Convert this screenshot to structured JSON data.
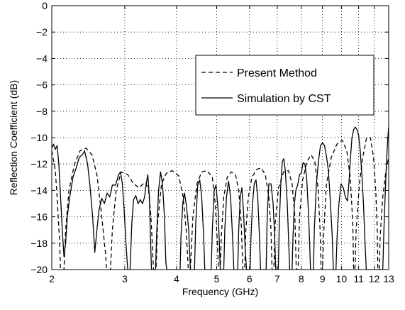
{
  "chart_data": {
    "type": "line",
    "title": "",
    "xlabel": "Frequency (GHz)",
    "ylabel": "Reflection Coefficient (dB)",
    "x_scale": "log",
    "xlim": [
      2,
      13
    ],
    "ylim": [
      -20,
      0
    ],
    "grid": true,
    "grid_style": "dotted",
    "legend_position": "upper-right",
    "x_ticks": [
      2,
      3,
      4,
      5,
      6,
      7,
      8,
      9,
      10,
      11,
      12,
      13
    ],
    "x_tick_labels": [
      "2",
      "3",
      "4",
      "5",
      "6",
      "7",
      "8",
      "9",
      "10",
      "11",
      "12",
      "13"
    ],
    "y_ticks": [
      0,
      -2,
      -4,
      -6,
      -8,
      -10,
      -12,
      -14,
      -16,
      -18,
      -20
    ],
    "y_tick_labels": [
      "0",
      "−2",
      "−4",
      "−6",
      "−8",
      "−10",
      "−12",
      "−14",
      "−16",
      "−18",
      "−20"
    ],
    "series": [
      {
        "name": "Present Method",
        "color": "#000000",
        "dashed": true,
        "points": [
          [
            2.0,
            -11.0
          ],
          [
            2.04,
            -12.5
          ],
          [
            2.06,
            -14.5
          ],
          [
            2.09,
            -18.0
          ],
          [
            2.1,
            -20
          ],
          [
            2.14,
            -20
          ],
          [
            2.16,
            -17.0
          ],
          [
            2.2,
            -14.0
          ],
          [
            2.27,
            -12.0
          ],
          [
            2.34,
            -11.0
          ],
          [
            2.42,
            -10.8
          ],
          [
            2.5,
            -11.3
          ],
          [
            2.57,
            -12.8
          ],
          [
            2.63,
            -15.5
          ],
          [
            2.7,
            -19.0
          ],
          [
            2.71,
            -20
          ],
          [
            2.77,
            -20
          ],
          [
            2.8,
            -17.0
          ],
          [
            2.86,
            -14.0
          ],
          [
            2.94,
            -12.6
          ],
          [
            3.05,
            -12.8
          ],
          [
            3.15,
            -13.5
          ],
          [
            3.25,
            -13.8
          ],
          [
            3.35,
            -13.4
          ],
          [
            3.42,
            -13.8
          ],
          [
            3.47,
            -16.0
          ],
          [
            3.52,
            -20
          ],
          [
            3.57,
            -20
          ],
          [
            3.6,
            -16.5
          ],
          [
            3.68,
            -13.5
          ],
          [
            3.78,
            -12.7
          ],
          [
            3.9,
            -12.5
          ],
          [
            4.05,
            -12.9
          ],
          [
            4.15,
            -14.5
          ],
          [
            4.22,
            -17.0
          ],
          [
            4.27,
            -20
          ],
          [
            4.32,
            -20
          ],
          [
            4.38,
            -16.0
          ],
          [
            4.48,
            -13.5
          ],
          [
            4.6,
            -12.6
          ],
          [
            4.74,
            -12.5
          ],
          [
            4.88,
            -13.0
          ],
          [
            4.96,
            -15.0
          ],
          [
            5.02,
            -18.0
          ],
          [
            5.05,
            -20
          ],
          [
            5.1,
            -20
          ],
          [
            5.13,
            -17.5
          ],
          [
            5.2,
            -14.5
          ],
          [
            5.3,
            -13.0
          ],
          [
            5.42,
            -12.6
          ],
          [
            5.55,
            -12.8
          ],
          [
            5.65,
            -14.0
          ],
          [
            5.73,
            -16.5
          ],
          [
            5.78,
            -20
          ],
          [
            5.84,
            -20
          ],
          [
            5.88,
            -17.0
          ],
          [
            5.96,
            -14.5
          ],
          [
            6.08,
            -13.0
          ],
          [
            6.25,
            -12.4
          ],
          [
            6.4,
            -12.3
          ],
          [
            6.55,
            -12.8
          ],
          [
            6.68,
            -14.5
          ],
          [
            6.76,
            -17.0
          ],
          [
            6.8,
            -20
          ],
          [
            6.87,
            -20
          ],
          [
            6.92,
            -16.5
          ],
          [
            7.05,
            -13.8
          ],
          [
            7.25,
            -12.6
          ],
          [
            7.45,
            -12.5
          ],
          [
            7.6,
            -13.5
          ],
          [
            7.72,
            -16.0
          ],
          [
            7.78,
            -20
          ],
          [
            7.86,
            -20
          ],
          [
            7.92,
            -16.0
          ],
          [
            8.06,
            -13.2
          ],
          [
            8.26,
            -11.8
          ],
          [
            8.45,
            -11.3
          ],
          [
            8.62,
            -11.8
          ],
          [
            8.78,
            -13.8
          ],
          [
            8.88,
            -17.0
          ],
          [
            8.93,
            -20
          ],
          [
            9.0,
            -20
          ],
          [
            9.07,
            -17.0
          ],
          [
            9.2,
            -13.5
          ],
          [
            9.45,
            -11.5
          ],
          [
            9.75,
            -10.5
          ],
          [
            10.05,
            -10.2
          ],
          [
            10.3,
            -11.0
          ],
          [
            10.5,
            -13.0
          ],
          [
            10.65,
            -16.5
          ],
          [
            10.7,
            -20
          ],
          [
            10.78,
            -20
          ],
          [
            10.85,
            -17.0
          ],
          [
            11.05,
            -13.5
          ],
          [
            11.25,
            -11.5
          ],
          [
            11.5,
            -10.0
          ],
          [
            11.75,
            -10.0
          ],
          [
            11.95,
            -11.5
          ],
          [
            12.1,
            -14.0
          ],
          [
            12.2,
            -17.0
          ],
          [
            12.24,
            -20
          ],
          [
            12.33,
            -20
          ],
          [
            12.4,
            -17.5
          ],
          [
            12.58,
            -14.5
          ],
          [
            12.8,
            -12.5
          ],
          [
            13.0,
            -11.5
          ]
        ]
      },
      {
        "name": "Simulation by CST",
        "color": "#000000",
        "dashed": false,
        "points": [
          [
            2.0,
            -10.8
          ],
          [
            2.02,
            -10.5
          ],
          [
            2.04,
            -10.9
          ],
          [
            2.06,
            -10.6
          ],
          [
            2.08,
            -12.0
          ],
          [
            2.1,
            -14.5
          ],
          [
            2.12,
            -17.0
          ],
          [
            2.14,
            -19.0
          ],
          [
            2.16,
            -18.0
          ],
          [
            2.18,
            -16.0
          ],
          [
            2.21,
            -14.5
          ],
          [
            2.25,
            -13.0
          ],
          [
            2.29,
            -12.3
          ],
          [
            2.33,
            -11.5
          ],
          [
            2.37,
            -11.3
          ],
          [
            2.4,
            -11.0
          ],
          [
            2.44,
            -12.0
          ],
          [
            2.47,
            -13.5
          ],
          [
            2.51,
            -16.0
          ],
          [
            2.54,
            -18.7
          ],
          [
            2.57,
            -17.0
          ],
          [
            2.6,
            -15.5
          ],
          [
            2.64,
            -14.6
          ],
          [
            2.68,
            -15.0
          ],
          [
            2.72,
            -14.2
          ],
          [
            2.76,
            -14.5
          ],
          [
            2.8,
            -13.6
          ],
          [
            2.85,
            -13.6
          ],
          [
            2.9,
            -12.8
          ],
          [
            2.93,
            -12.6
          ],
          [
            2.96,
            -13.5
          ],
          [
            2.99,
            -15.5
          ],
          [
            3.02,
            -18.0
          ],
          [
            3.05,
            -20
          ],
          [
            3.09,
            -20
          ],
          [
            3.12,
            -16.5
          ],
          [
            3.15,
            -14.7
          ],
          [
            3.19,
            -14.4
          ],
          [
            3.23,
            -15.0
          ],
          [
            3.27,
            -14.7
          ],
          [
            3.31,
            -15.0
          ],
          [
            3.35,
            -14.5
          ],
          [
            3.38,
            -13.5
          ],
          [
            3.41,
            -12.8
          ],
          [
            3.44,
            -14.5
          ],
          [
            3.46,
            -17.5
          ],
          [
            3.48,
            -20
          ],
          [
            3.56,
            -20
          ],
          [
            3.58,
            -17.5
          ],
          [
            3.62,
            -14.0
          ],
          [
            3.66,
            -12.6
          ],
          [
            3.7,
            -13.5
          ],
          [
            3.74,
            -16.0
          ],
          [
            3.77,
            -19.5
          ],
          [
            3.79,
            -20
          ],
          [
            4.08,
            -20
          ],
          [
            4.1,
            -17.5
          ],
          [
            4.14,
            -15.0
          ],
          [
            4.18,
            -14.2
          ],
          [
            4.22,
            -15.0
          ],
          [
            4.28,
            -17.0
          ],
          [
            4.32,
            -20
          ],
          [
            4.42,
            -20
          ],
          [
            4.45,
            -16.5
          ],
          [
            4.5,
            -13.6
          ],
          [
            4.55,
            -13.2
          ],
          [
            4.6,
            -14.5
          ],
          [
            4.65,
            -17.5
          ],
          [
            4.68,
            -20
          ],
          [
            4.85,
            -20
          ],
          [
            4.88,
            -17.0
          ],
          [
            4.93,
            -14.0
          ],
          [
            4.98,
            -13.6
          ],
          [
            5.04,
            -15.5
          ],
          [
            5.08,
            -18.5
          ],
          [
            5.1,
            -20
          ],
          [
            5.2,
            -20
          ],
          [
            5.23,
            -17.0
          ],
          [
            5.28,
            -14.5
          ],
          [
            5.34,
            -13.3
          ],
          [
            5.4,
            -14.5
          ],
          [
            5.46,
            -17.5
          ],
          [
            5.5,
            -20
          ],
          [
            5.62,
            -20
          ],
          [
            5.65,
            -17.0
          ],
          [
            5.7,
            -14.5
          ],
          [
            5.75,
            -13.8
          ],
          [
            5.8,
            -15.5
          ],
          [
            5.86,
            -18.5
          ],
          [
            5.9,
            -20
          ],
          [
            6.02,
            -20
          ],
          [
            6.05,
            -17.5
          ],
          [
            6.1,
            -15.0
          ],
          [
            6.16,
            -13.5
          ],
          [
            6.22,
            -13.2
          ],
          [
            6.28,
            -14.5
          ],
          [
            6.34,
            -17.5
          ],
          [
            6.38,
            -20
          ],
          [
            6.58,
            -20
          ],
          [
            6.62,
            -16.0
          ],
          [
            6.68,
            -13.5
          ],
          [
            6.76,
            -13.5
          ],
          [
            6.84,
            -15.0
          ],
          [
            6.9,
            -17.5
          ],
          [
            6.94,
            -20
          ],
          [
            7.04,
            -20
          ],
          [
            7.08,
            -16.5
          ],
          [
            7.14,
            -13.5
          ],
          [
            7.2,
            -11.8
          ],
          [
            7.26,
            -11.6
          ],
          [
            7.32,
            -12.5
          ],
          [
            7.4,
            -15.0
          ],
          [
            7.46,
            -18.0
          ],
          [
            7.5,
            -20
          ],
          [
            7.6,
            -20
          ],
          [
            7.64,
            -17.5
          ],
          [
            7.7,
            -15.0
          ],
          [
            7.76,
            -14.0
          ],
          [
            7.84,
            -13.6
          ],
          [
            7.92,
            -12.8
          ],
          [
            8.0,
            -12.7
          ],
          [
            8.08,
            -11.9
          ],
          [
            8.16,
            -12.0
          ],
          [
            8.24,
            -13.0
          ],
          [
            8.32,
            -15.5
          ],
          [
            8.38,
            -18.0
          ],
          [
            8.42,
            -20
          ],
          [
            8.56,
            -20
          ],
          [
            8.6,
            -17.0
          ],
          [
            8.7,
            -13.5
          ],
          [
            8.8,
            -11.8
          ],
          [
            8.9,
            -10.6
          ],
          [
            9.0,
            -10.4
          ],
          [
            9.1,
            -10.6
          ],
          [
            9.2,
            -11.4
          ],
          [
            9.3,
            -12.5
          ],
          [
            9.4,
            -14.8
          ],
          [
            9.5,
            -17.5
          ],
          [
            9.56,
            -20
          ],
          [
            9.7,
            -20
          ],
          [
            9.76,
            -17.5
          ],
          [
            9.86,
            -15.0
          ],
          [
            9.98,
            -13.5
          ],
          [
            10.1,
            -13.8
          ],
          [
            10.22,
            -14.5
          ],
          [
            10.34,
            -14.8
          ],
          [
            10.42,
            -13.5
          ],
          [
            10.5,
            -11.8
          ],
          [
            10.6,
            -10.0
          ],
          [
            10.7,
            -9.4
          ],
          [
            10.8,
            -9.2
          ],
          [
            10.9,
            -9.4
          ],
          [
            11.0,
            -9.8
          ],
          [
            11.1,
            -11.0
          ],
          [
            11.2,
            -12.8
          ],
          [
            11.3,
            -15.0
          ],
          [
            11.4,
            -18.0
          ],
          [
            11.48,
            -20
          ],
          [
            12.58,
            -20
          ],
          [
            12.66,
            -17.0
          ],
          [
            12.76,
            -14.0
          ],
          [
            12.86,
            -11.5
          ],
          [
            12.94,
            -10.0
          ],
          [
            13.0,
            -9.2
          ]
        ]
      }
    ]
  }
}
